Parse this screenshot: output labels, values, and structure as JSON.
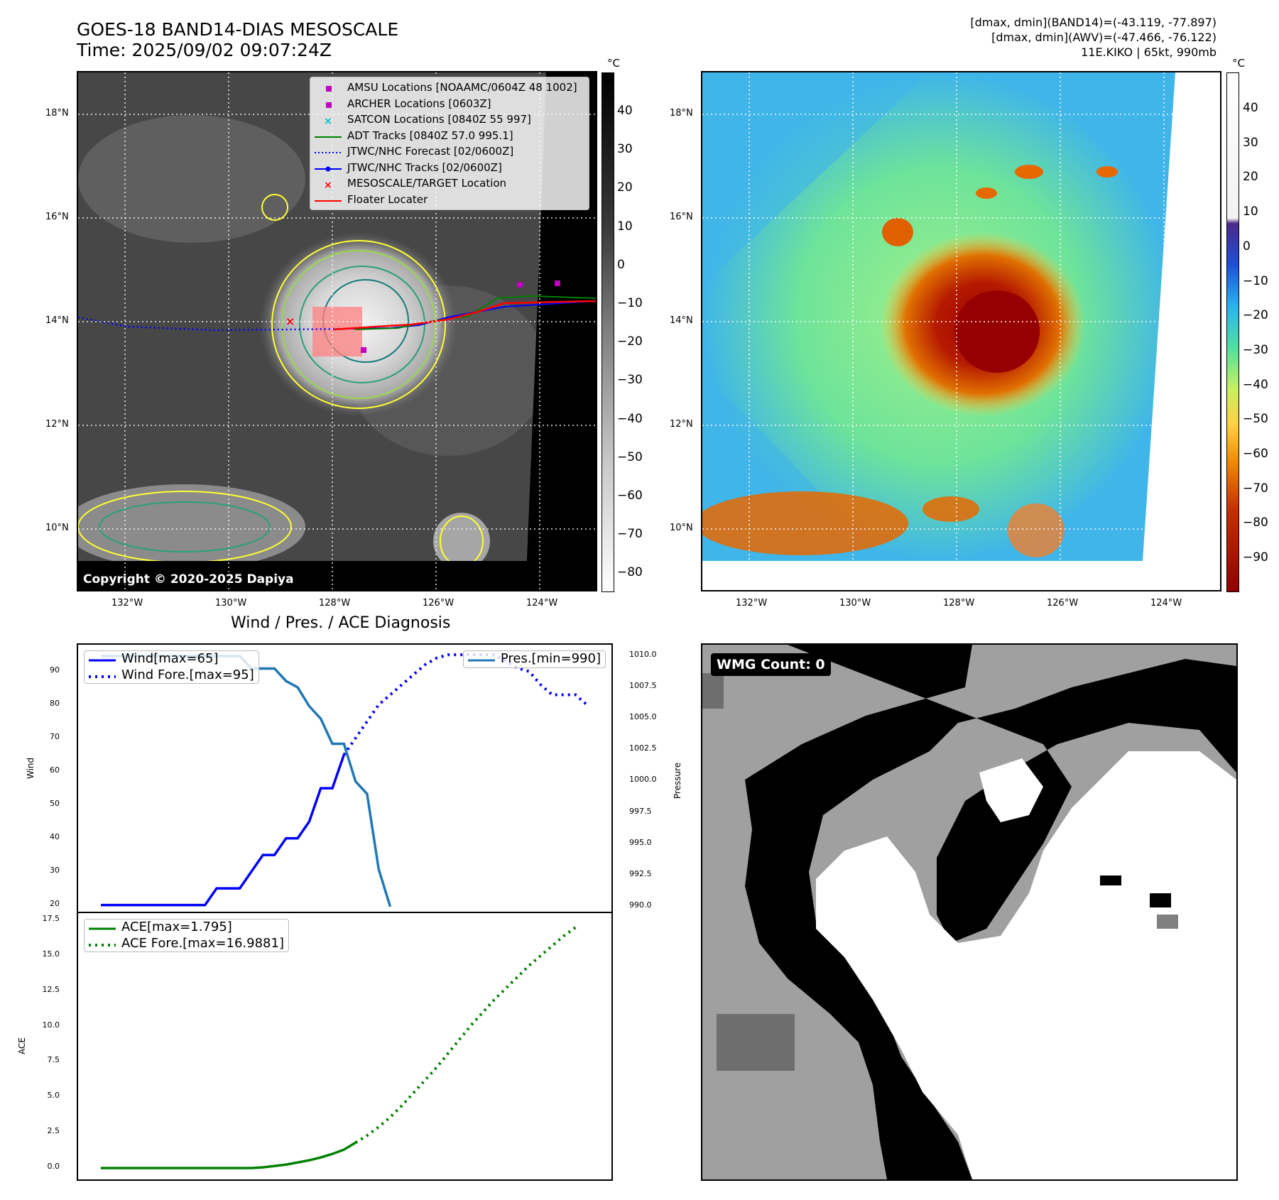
{
  "header": {
    "title_line1": "GOES-18 BAND14-DIAS MESOSCALE",
    "title_line2": "Time: 2025/09/02 09:07:24Z",
    "info_line1": "[dmax, dmin](BAND14)=(-43.119, -77.897)",
    "info_line2": "[dmax, dmin](AWV)=(-47.466, -76.122)",
    "info_line3": "11E.KIKO | 65kt, 990mb"
  },
  "map": {
    "lat_labels": [
      "18°N",
      "16°N",
      "14°N",
      "12°N",
      "10°N"
    ],
    "lon_labels": [
      "132°W",
      "130°W",
      "128°W",
      "126°W",
      "124°W"
    ],
    "copyright": "Copyright © 2020-2025 Dapiya",
    "legend": [
      {
        "label": "AMSU Locations [NOAAMC/0604Z 48 1002]",
        "symbol": "square",
        "color": "#c000c0"
      },
      {
        "label": "ARCHER Locations [0603Z]",
        "symbol": "square",
        "color": "#c000c0"
      },
      {
        "label": "SATCON Locations [0840Z 55 997]",
        "symbol": "x",
        "color": "#00c0c0"
      },
      {
        "label": "ADT Tracks [0840Z 57.0 995.1]",
        "symbol": "line",
        "color": "#008000"
      },
      {
        "label": "JTWC/NHC Forecast [02/0600Z]",
        "symbol": "dotted",
        "color": "#0000ff"
      },
      {
        "label": "JTWC/NHC Tracks [02/0600Z]",
        "symbol": "line-dot",
        "color": "#0000ff"
      },
      {
        "label": "MESOSCALE/TARGET Location",
        "symbol": "x",
        "color": "#ff0000"
      },
      {
        "label": "Floater Locater",
        "symbol": "line",
        "color": "#ff0000"
      }
    ]
  },
  "colorbar_gray": {
    "unit": "°C",
    "ticks": [
      "40",
      "30",
      "20",
      "10",
      "0",
      "−10",
      "−20",
      "−30",
      "−40",
      "−50",
      "−60",
      "−70",
      "−80"
    ]
  },
  "colorbar_color": {
    "unit": "°C",
    "ticks": [
      "40",
      "30",
      "20",
      "10",
      "0",
      "−10",
      "−20",
      "−30",
      "−40",
      "−50",
      "−60",
      "−70",
      "−80",
      "−90"
    ]
  },
  "wmg": {
    "label": "WMG Count: 0"
  },
  "chart_data": [
    {
      "type": "line",
      "title": "Wind / Pres. / ACE Diagnosis",
      "ylabel": "Wind",
      "ylabel_right": "Pressure",
      "yticks": [
        "90",
        "80",
        "70",
        "60",
        "50",
        "40",
        "30",
        "20"
      ],
      "yticks_right": [
        "1010.0",
        "1007.5",
        "1005.0",
        "1002.5",
        "1000.0",
        "997.5",
        "995.0",
        "992.5",
        "990.0"
      ],
      "ylim": [
        18,
        98
      ],
      "ylim_right": [
        989.6,
        1010.9
      ],
      "series": [
        {
          "name": "Wind[max=65]",
          "color": "#0000ff",
          "style": "solid",
          "axis": "left",
          "values": [
            20,
            20,
            20,
            20,
            20,
            20,
            20,
            20,
            20,
            20,
            25,
            25,
            25,
            30,
            35,
            35,
            40,
            40,
            45,
            55,
            55,
            65
          ]
        },
        {
          "name": "Wind Fore.[max=95]",
          "color": "#0000ff",
          "style": "dotted",
          "axis": "left",
          "start_index": 21,
          "values": [
            65,
            70,
            75,
            80,
            83,
            86,
            89,
            92,
            94,
            95,
            95,
            95,
            95,
            95,
            93,
            91,
            90,
            86,
            83,
            83,
            83,
            80
          ]
        },
        {
          "name": "Pres.[min=990]",
          "color": "#1f77b4",
          "style": "solid",
          "axis": "right",
          "values": [
            1010,
            1010,
            1010,
            1010,
            1010,
            1010,
            1010,
            1010,
            1010,
            1010,
            1010,
            1010,
            1010,
            1009,
            1009,
            1009,
            1008,
            1007.5,
            1006,
            1005,
            1003,
            1003,
            1000,
            999,
            993,
            990
          ]
        }
      ]
    },
    {
      "type": "line",
      "ylabel": "ACE",
      "yticks": [
        "17.5",
        "15.0",
        "12.5",
        "10.0",
        "7.5",
        "5.0",
        "2.5",
        "0.0"
      ],
      "ylim": [
        -0.8,
        18.0
      ],
      "series": [
        {
          "name": "ACE[max=1.795]",
          "color": "#008000",
          "style": "solid",
          "values": [
            0,
            0,
            0,
            0,
            0,
            0,
            0,
            0,
            0,
            0,
            0,
            0,
            0,
            0,
            0.05,
            0.15,
            0.25,
            0.4,
            0.55,
            0.75,
            1.0,
            1.3,
            1.795
          ]
        },
        {
          "name": "ACE Fore.[max=16.9881]",
          "color": "#008000",
          "style": "dotted",
          "start_index": 22,
          "values": [
            1.795,
            2.3,
            2.9,
            3.6,
            4.4,
            5.3,
            6.2,
            7.1,
            8.1,
            9.1,
            10.1,
            11.0,
            11.9,
            12.7,
            13.5,
            14.3,
            15.0,
            15.7,
            16.4,
            16.9881
          ]
        }
      ]
    }
  ]
}
